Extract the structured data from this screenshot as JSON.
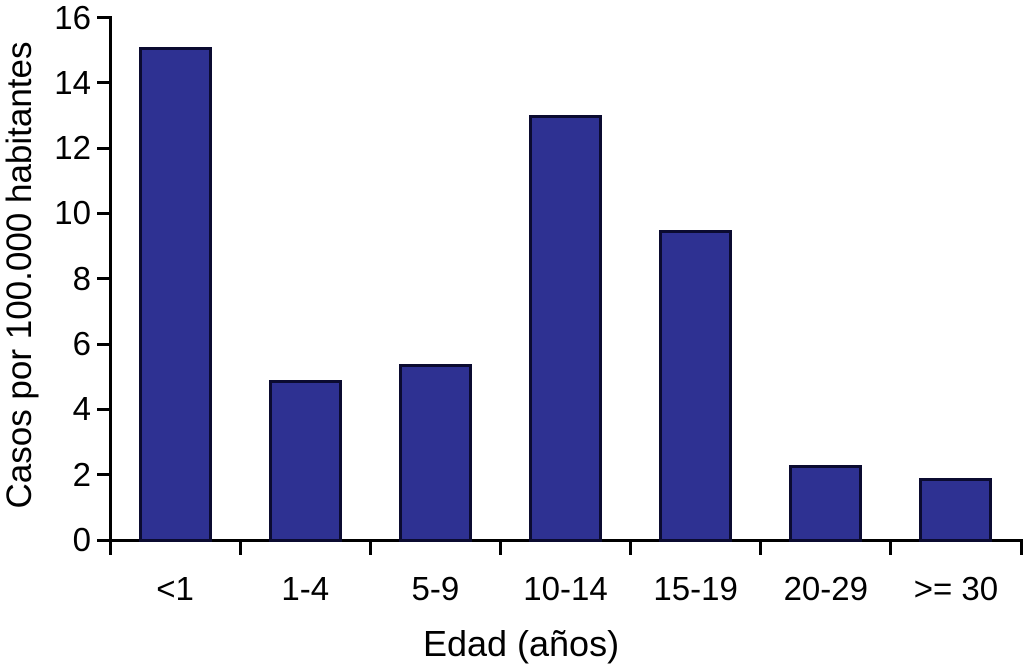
{
  "chart_data": {
    "type": "bar",
    "title": "",
    "xlabel": "Edad (años)",
    "ylabel": "Casos por 100.000 habitantes",
    "categories": [
      "<1",
      "1-4",
      "5-9",
      "10-14",
      "15-19",
      "20-29",
      ">= 30"
    ],
    "values": [
      15.1,
      4.9,
      5.4,
      13.0,
      9.5,
      2.3,
      1.9
    ],
    "ylim": [
      0,
      16
    ],
    "ytick_step": 2,
    "yticks": [
      0,
      2,
      4,
      6,
      8,
      10,
      12,
      14,
      16
    ],
    "grid": false,
    "legend": null,
    "bar_color": "#2E3192",
    "bar_border_color": "#0B0B30",
    "axis_color": "#000000",
    "text_color": "#000000",
    "background_color": "#FFFFFF"
  }
}
